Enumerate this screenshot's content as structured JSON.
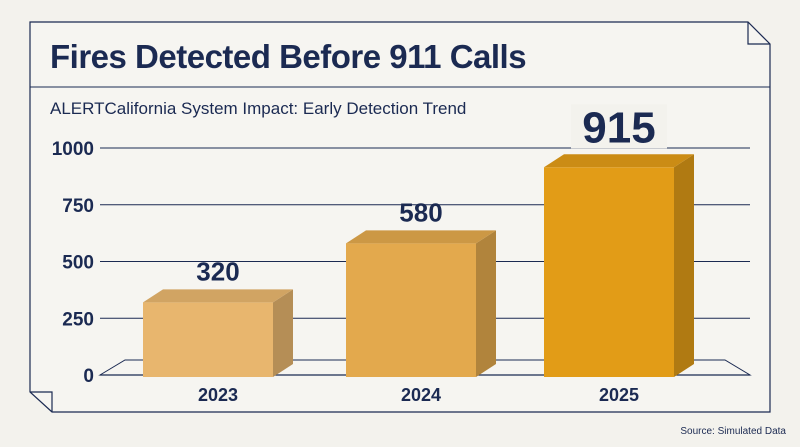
{
  "header": {
    "title": "Fires Detected Before 911 Calls",
    "subtitle": "ALERTCalifornia System Impact: Early Detection Trend"
  },
  "footer": {
    "source": "Source: Simulated Data"
  },
  "colors": {
    "background": "#f3f2ed",
    "text": "#1b2a52",
    "bar_2023": "#e8b66e",
    "bar_2024": "#e3a94d",
    "bar_2025": "#e29c17"
  },
  "chart_data": {
    "type": "bar",
    "style": "3d",
    "categories": [
      "2023",
      "2024",
      "2025"
    ],
    "values": [
      320,
      580,
      915
    ],
    "data_labels": [
      "320",
      "580",
      "915"
    ],
    "yticks": [
      "0",
      "250",
      "500",
      "750",
      "1000"
    ],
    "ylim": [
      0,
      1000
    ],
    "grid": true,
    "legend": "none"
  }
}
